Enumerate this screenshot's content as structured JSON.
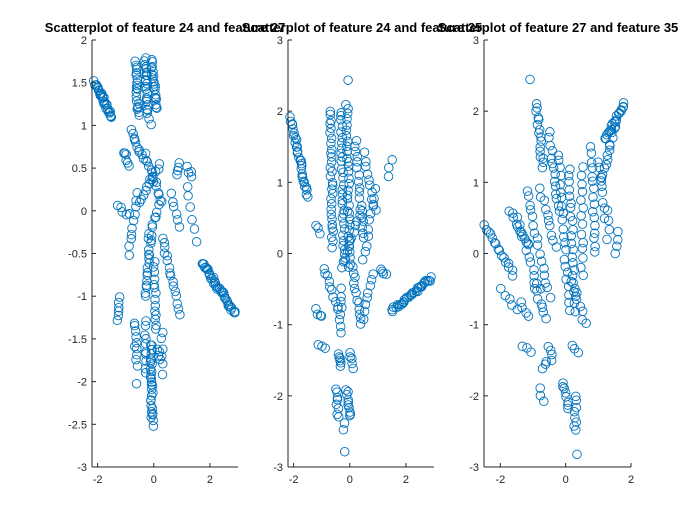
{
  "figure": {
    "background": "#ffffff",
    "marker_color": "#0072BD",
    "marker_shape": "open-circle"
  },
  "chart_data": [
    {
      "type": "scatter",
      "title": "Scatterplot of feature 24 and feature 27",
      "xlabel": "",
      "ylabel": "",
      "xlim": [
        -2.2,
        3.0
      ],
      "ylim": [
        -3,
        2
      ],
      "xticks": [
        -2,
        0,
        2
      ],
      "yticks": [
        -3,
        -2.5,
        -2,
        -1.5,
        -1,
        -0.5,
        0,
        0.5,
        1,
        1.5,
        2
      ],
      "xtick_labels": [
        "-2",
        "0",
        "2"
      ],
      "ytick_labels": [
        "-3",
        "-2.5",
        "-2",
        "-1.5",
        "-1",
        "-0.5",
        "0",
        "0.5",
        "1",
        "1.5",
        "2"
      ],
      "grid": false,
      "segments": [
        {
          "from": [
            -2.1,
            1.5
          ],
          "to": [
            -1.5,
            1.1
          ],
          "n": 30
        },
        {
          "from": [
            -0.65,
            1.75
          ],
          "to": [
            -0.55,
            1.1
          ],
          "n": 20
        },
        {
          "from": [
            -0.3,
            1.8
          ],
          "to": [
            -0.2,
            1.1
          ],
          "n": 22
        },
        {
          "from": [
            -0.1,
            1.75
          ],
          "to": [
            0.1,
            1.2
          ],
          "n": 20
        },
        {
          "from": [
            -0.8,
            0.95
          ],
          "to": [
            -0.4,
            0.6
          ],
          "n": 10
        },
        {
          "from": [
            -1.1,
            0.7
          ],
          "to": [
            -0.85,
            0.55
          ],
          "n": 6
        },
        {
          "from": [
            -0.3,
            0.65
          ],
          "to": [
            0.3,
            0.1
          ],
          "n": 14
        },
        {
          "from": [
            0.2,
            0.55
          ],
          "to": [
            -0.5,
            0.1
          ],
          "n": 12
        },
        {
          "from": [
            0.9,
            0.55
          ],
          "to": [
            0.8,
            0.4
          ],
          "n": 4
        },
        {
          "from": [
            1.35,
            0.4
          ],
          "to": [
            1.2,
            0.5
          ],
          "n": 4
        },
        {
          "from": [
            -1.3,
            0.05
          ],
          "to": [
            -0.9,
            -0.05
          ],
          "n": 5
        },
        {
          "from": [
            -0.6,
            0.2
          ],
          "to": [
            -0.9,
            -0.5
          ],
          "n": 10
        },
        {
          "from": [
            0.2,
            0.05
          ],
          "to": [
            -0.2,
            -0.3
          ],
          "n": 8
        },
        {
          "from": [
            0.6,
            0.2
          ],
          "to": [
            0.9,
            -0.2
          ],
          "n": 6
        },
        {
          "from": [
            1.2,
            0.3
          ],
          "to": [
            1.5,
            -0.35
          ],
          "n": 6
        },
        {
          "from": [
            1.7,
            -0.6
          ],
          "to": [
            2.9,
            -1.2
          ],
          "n": 40
        },
        {
          "from": [
            0.3,
            -0.3
          ],
          "to": [
            0.9,
            -1.2
          ],
          "n": 16
        },
        {
          "from": [
            -0.1,
            -0.3
          ],
          "to": [
            -0.3,
            -1.0
          ],
          "n": 16
        },
        {
          "from": [
            0.0,
            -0.6
          ],
          "to": [
            0.1,
            -1.4
          ],
          "n": 14
        },
        {
          "from": [
            -1.2,
            -1.0
          ],
          "to": [
            -1.3,
            -1.3
          ],
          "n": 6
        },
        {
          "from": [
            -0.7,
            -1.3
          ],
          "to": [
            -0.6,
            -1.8
          ],
          "n": 10
        },
        {
          "from": [
            -0.3,
            -1.3
          ],
          "to": [
            -0.3,
            -1.9
          ],
          "n": 10
        },
        {
          "from": [
            -0.1,
            -1.55
          ],
          "to": [
            -0.05,
            -2.5
          ],
          "n": 30
        },
        {
          "from": [
            0.15,
            -1.6
          ],
          "to": [
            0.2,
            -1.75
          ],
          "n": 4
        },
        {
          "from": [
            0.3,
            -1.4
          ],
          "to": [
            0.3,
            -1.9
          ],
          "n": 6
        },
        {
          "from": [
            -0.65,
            -2.05
          ],
          "to": [
            -0.65,
            -2.05
          ],
          "n": 1
        },
        {
          "from": [
            -0.1,
            1.0
          ],
          "to": [
            -0.1,
            1.0
          ],
          "n": 1
        }
      ]
    },
    {
      "type": "scatter",
      "title": "Scatterplot of feature 24 and feature 35",
      "xlabel": "",
      "ylabel": "",
      "xlim": [
        -2.2,
        3.0
      ],
      "ylim": [
        -3,
        3
      ],
      "xticks": [
        -2,
        0,
        2
      ],
      "yticks": [
        -3,
        -2,
        -1,
        0,
        1,
        2,
        3
      ],
      "xtick_labels": [
        "-2",
        "0",
        "2"
      ],
      "ytick_labels": [
        "-3",
        "-2",
        "-1",
        "0",
        "1",
        "2",
        "3"
      ],
      "grid": false,
      "segments": [
        {
          "from": [
            -2.1,
            1.9
          ],
          "to": [
            -1.5,
            0.8
          ],
          "n": 30
        },
        {
          "from": [
            -0.7,
            2.0
          ],
          "to": [
            -0.6,
            0.1
          ],
          "n": 30
        },
        {
          "from": [
            -0.3,
            2.0
          ],
          "to": [
            -0.2,
            -0.1
          ],
          "n": 30
        },
        {
          "from": [
            -0.1,
            2.1
          ],
          "to": [
            0.0,
            -0.2
          ],
          "n": 32
        },
        {
          "from": [
            0.2,
            1.6
          ],
          "to": [
            0.5,
            0.2
          ],
          "n": 18
        },
        {
          "from": [
            0.5,
            1.4
          ],
          "to": [
            0.9,
            0.6
          ],
          "n": 10
        },
        {
          "from": [
            1.5,
            1.3
          ],
          "to": [
            1.35,
            1.1
          ],
          "n": 3
        },
        {
          "from": [
            -1.2,
            0.4
          ],
          "to": [
            -1.1,
            0.3
          ],
          "n": 3
        },
        {
          "from": [
            0.4,
            0.6
          ],
          "to": [
            -0.3,
            -0.2
          ],
          "n": 12
        },
        {
          "from": [
            0.9,
            0.9
          ],
          "to": [
            0.5,
            -0.1
          ],
          "n": 10
        },
        {
          "from": [
            -0.9,
            -0.2
          ],
          "to": [
            -0.4,
            -0.8
          ],
          "n": 10
        },
        {
          "from": [
            -1.2,
            -0.8
          ],
          "to": [
            -1.0,
            -0.9
          ],
          "n": 4
        },
        {
          "from": [
            0.1,
            -0.2
          ],
          "to": [
            0.4,
            -1.0
          ],
          "n": 12
        },
        {
          "from": [
            0.8,
            -0.3
          ],
          "to": [
            0.5,
            -0.9
          ],
          "n": 8
        },
        {
          "from": [
            1.1,
            -0.2
          ],
          "to": [
            1.3,
            -0.3
          ],
          "n": 4
        },
        {
          "from": [
            1.5,
            -0.8
          ],
          "to": [
            2.9,
            -0.35
          ],
          "n": 34
        },
        {
          "from": [
            -0.3,
            -0.5
          ],
          "to": [
            -0.35,
            -1.1
          ],
          "n": 8
        },
        {
          "from": [
            -1.1,
            -1.3
          ],
          "to": [
            -0.9,
            -1.35
          ],
          "n": 3
        },
        {
          "from": [
            -0.4,
            -1.4
          ],
          "to": [
            -0.3,
            -1.6
          ],
          "n": 6
        },
        {
          "from": [
            0.0,
            -1.4
          ],
          "to": [
            0.1,
            -1.6
          ],
          "n": 5
        },
        {
          "from": [
            -0.5,
            -1.9
          ],
          "to": [
            -0.4,
            -2.3
          ],
          "n": 8
        },
        {
          "from": [
            -0.1,
            -1.9
          ],
          "to": [
            0.0,
            -2.3
          ],
          "n": 10
        },
        {
          "from": [
            -0.2,
            -2.4
          ],
          "to": [
            -0.2,
            -2.5
          ],
          "n": 2
        },
        {
          "from": [
            -0.15,
            -2.8
          ],
          "to": [
            -0.15,
            -2.8
          ],
          "n": 1
        },
        {
          "from": [
            -0.05,
            2.45
          ],
          "to": [
            -0.05,
            2.45
          ],
          "n": 1
        }
      ]
    },
    {
      "type": "scatter",
      "title": "Scatterplot of feature 27 and feature 35",
      "xlabel": "",
      "ylabel": "",
      "xlim": [
        -2.5,
        2.0
      ],
      "ylim": [
        -3,
        3
      ],
      "xticks": [
        -2,
        0,
        2
      ],
      "yticks": [
        -3,
        -2,
        -1,
        0,
        1,
        2,
        3
      ],
      "xtick_labels": [
        "-2",
        "0",
        "2"
      ],
      "ytick_labels": [
        "-3",
        "-2",
        "-1",
        "0",
        "1",
        "2",
        "3"
      ],
      "grid": false,
      "segments": [
        {
          "from": [
            -2.5,
            0.4
          ],
          "to": [
            -1.6,
            -0.3
          ],
          "n": 16
        },
        {
          "from": [
            -1.7,
            0.6
          ],
          "to": [
            -1.1,
            0.1
          ],
          "n": 10
        },
        {
          "from": [
            -1.5,
            0.5
          ],
          "to": [
            -0.8,
            -0.5
          ],
          "n": 12
        },
        {
          "from": [
            -1.2,
            0.9
          ],
          "to": [
            -0.5,
            -0.6
          ],
          "n": 16
        },
        {
          "from": [
            -0.9,
            2.1
          ],
          "to": [
            -0.7,
            1.2
          ],
          "n": 16
        },
        {
          "from": [
            -0.8,
            0.9
          ],
          "to": [
            -0.3,
            0.1
          ],
          "n": 10
        },
        {
          "from": [
            -0.5,
            1.7
          ],
          "to": [
            -0.2,
            0.6
          ],
          "n": 14
        },
        {
          "from": [
            -0.2,
            1.4
          ],
          "to": [
            0.1,
            -0.8
          ],
          "n": 22
        },
        {
          "from": [
            0.1,
            1.2
          ],
          "to": [
            0.3,
            -0.8
          ],
          "n": 22
        },
        {
          "from": [
            0.5,
            1.2
          ],
          "to": [
            0.5,
            -0.3
          ],
          "n": 14
        },
        {
          "from": [
            0.8,
            1.5
          ],
          "to": [
            0.9,
            0.0
          ],
          "n": 16
        },
        {
          "from": [
            1.0,
            1.3
          ],
          "to": [
            1.2,
            0.5
          ],
          "n": 8
        },
        {
          "from": [
            1.2,
            1.6
          ],
          "to": [
            1.8,
            2.1
          ],
          "n": 20
        },
        {
          "from": [
            1.1,
            1.0
          ],
          "to": [
            1.5,
            1.8
          ],
          "n": 14
        },
        {
          "from": [
            1.6,
            0.3
          ],
          "to": [
            1.5,
            0.0
          ],
          "n": 4
        },
        {
          "from": [
            1.3,
            0.6
          ],
          "to": [
            1.3,
            0.2
          ],
          "n": 4
        },
        {
          "from": [
            -1.0,
            -0.4
          ],
          "to": [
            -0.6,
            -0.9
          ],
          "n": 8
        },
        {
          "from": [
            -2.0,
            -0.5
          ],
          "to": [
            -1.5,
            -0.8
          ],
          "n": 5
        },
        {
          "from": [
            -1.4,
            -0.7
          ],
          "to": [
            -1.1,
            -0.9
          ],
          "n": 4
        },
        {
          "from": [
            -1.3,
            -1.3
          ],
          "to": [
            -1.1,
            -1.4
          ],
          "n": 3
        },
        {
          "from": [
            0.2,
            -0.4
          ],
          "to": [
            0.6,
            -1.0
          ],
          "n": 8
        },
        {
          "from": [
            -0.5,
            -1.3
          ],
          "to": [
            -0.4,
            -1.5
          ],
          "n": 4
        },
        {
          "from": [
            -0.7,
            -1.6
          ],
          "to": [
            -0.6,
            -1.5
          ],
          "n": 3
        },
        {
          "from": [
            0.2,
            -1.3
          ],
          "to": [
            0.4,
            -1.4
          ],
          "n": 3
        },
        {
          "from": [
            -0.1,
            -1.8
          ],
          "to": [
            0.1,
            -2.2
          ],
          "n": 8
        },
        {
          "from": [
            0.3,
            -2.0
          ],
          "to": [
            0.3,
            -2.5
          ],
          "n": 8
        },
        {
          "from": [
            -0.8,
            -1.9
          ],
          "to": [
            -0.7,
            -2.1
          ],
          "n": 3
        },
        {
          "from": [
            0.35,
            -2.8
          ],
          "to": [
            0.35,
            -2.8
          ],
          "n": 1
        },
        {
          "from": [
            -1.1,
            2.45
          ],
          "to": [
            -1.1,
            2.45
          ],
          "n": 1
        }
      ]
    }
  ]
}
